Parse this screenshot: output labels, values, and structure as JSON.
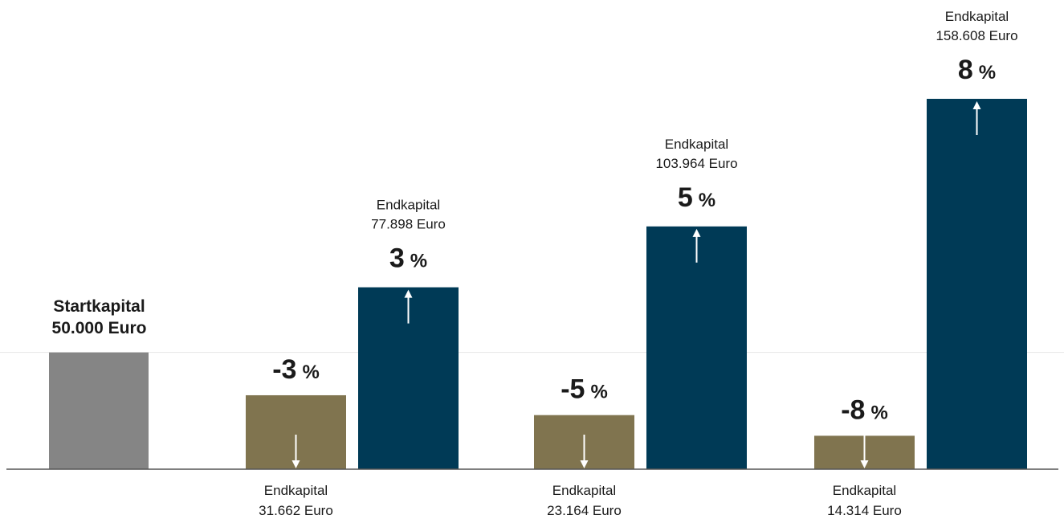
{
  "chart_data": {
    "type": "bar",
    "colors": {
      "start": "#858585",
      "loss": "#80744f",
      "gain": "#003a56",
      "baseline": "#555555",
      "gridline": "#e6e6e6",
      "arrow": "#ffffff"
    },
    "start": {
      "label_line1": "Startkapital",
      "label_line2": "50.000 Euro",
      "value": 50000
    },
    "bars": [
      {
        "kind": "loss",
        "pct_num": "-3",
        "pct_sym": "%",
        "cap_label": "Endkapital",
        "cap_value": "31.662 Euro",
        "value": 31662
      },
      {
        "kind": "gain",
        "pct_num": "3",
        "pct_sym": "%",
        "cap_label": "Endkapital",
        "cap_value": "77.898 Euro",
        "value": 77898
      },
      {
        "kind": "loss",
        "pct_num": "-5",
        "pct_sym": "%",
        "cap_label": "Endkapital",
        "cap_value": "23.164 Euro",
        "value": 23164
      },
      {
        "kind": "gain",
        "pct_num": "5",
        "pct_sym": "%",
        "cap_label": "Endkapital",
        "cap_value": "103.964 Euro",
        "value": 103964
      },
      {
        "kind": "loss",
        "pct_num": "-8",
        "pct_sym": "%",
        "cap_label": "Endkapital",
        "cap_value": "14.314 Euro",
        "value": 14314
      },
      {
        "kind": "gain",
        "pct_num": "8",
        "pct_sym": "%",
        "cap_label": "Endkapital",
        "cap_value": "158.608 Euro",
        "value": 158608
      }
    ],
    "ylim": [
      0,
      158608
    ]
  }
}
